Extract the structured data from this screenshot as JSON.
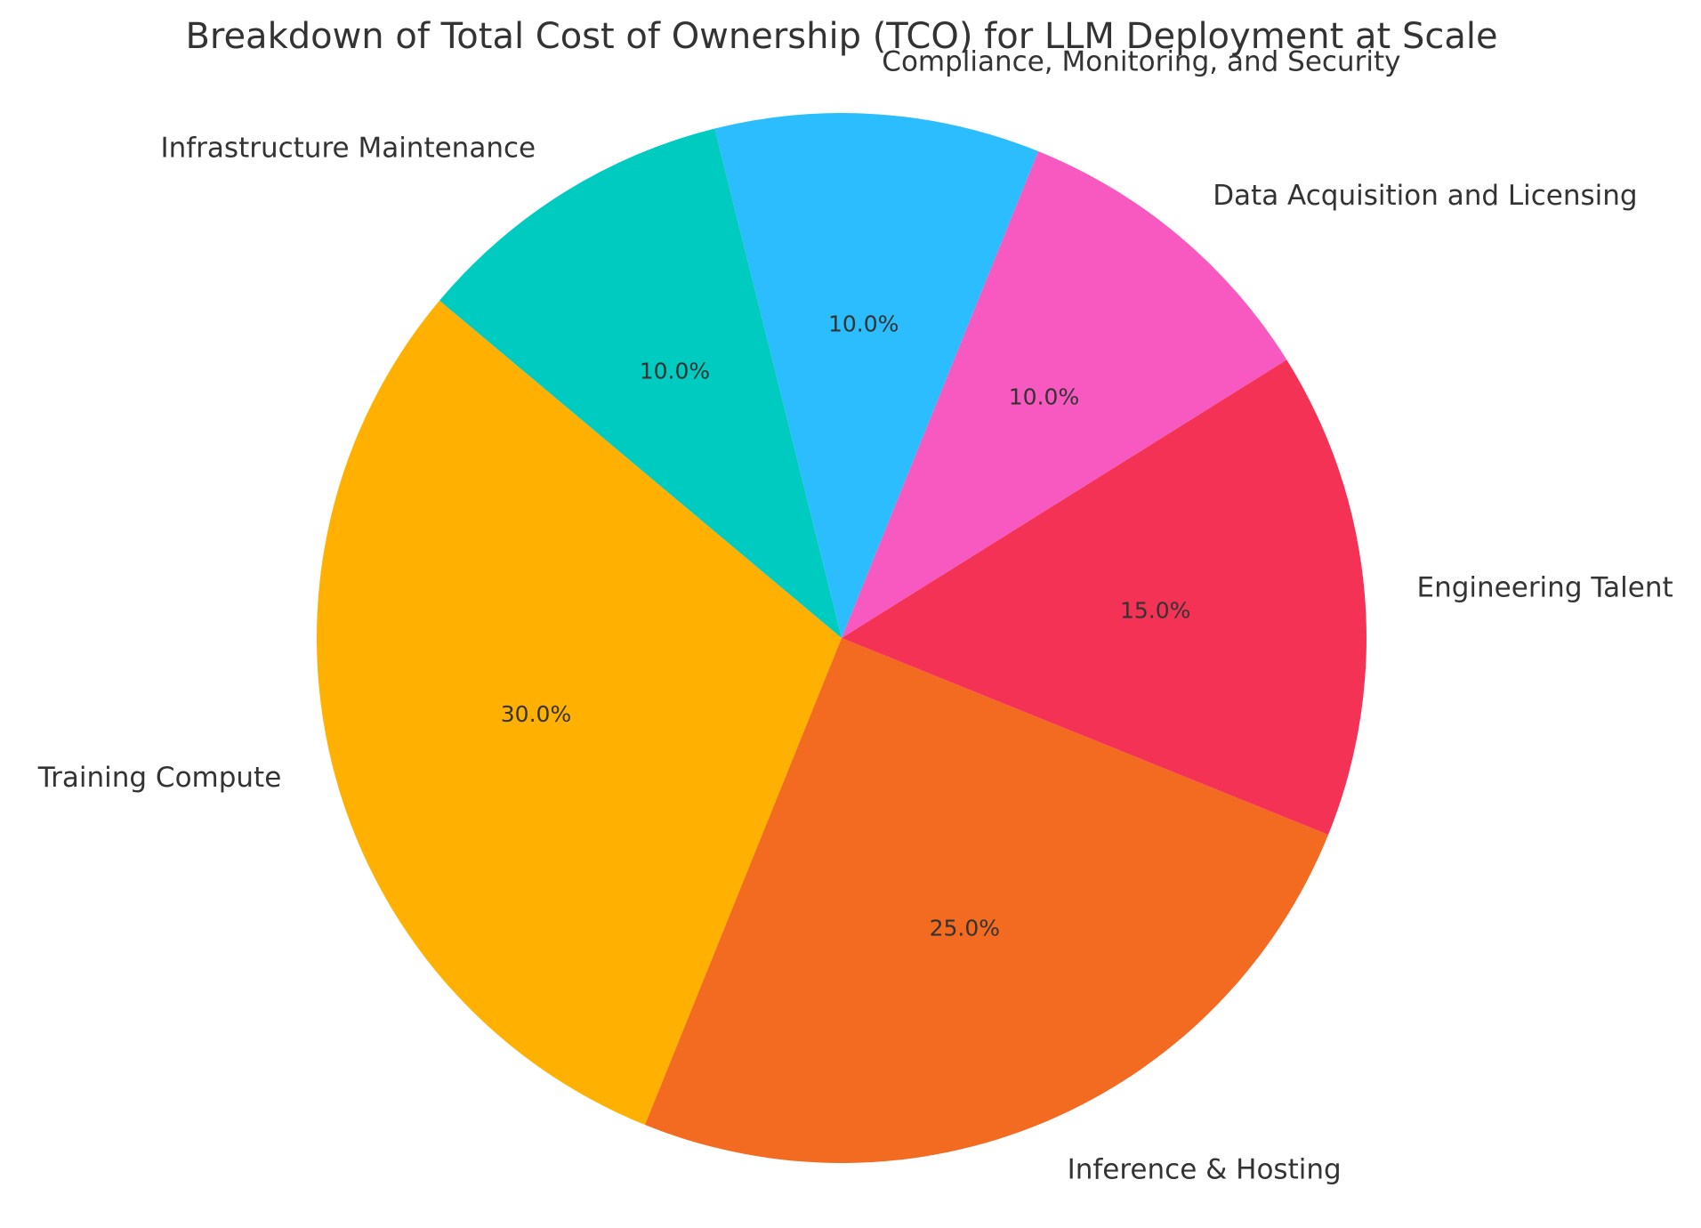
{
  "chart_data": {
    "type": "pie",
    "title": "Breakdown of Total Cost of Ownership (TCO) for LLM Deployment at Scale",
    "slices": [
      {
        "label": "Training Compute",
        "value": 30.0,
        "pct_text": "30.0%",
        "color": "#FFB000"
      },
      {
        "label": "Inference & Hosting",
        "value": 25.0,
        "pct_text": "25.0%",
        "color": "#F26B21"
      },
      {
        "label": "Engineering Talent",
        "value": 15.0,
        "pct_text": "15.0%",
        "color": "#F43256"
      },
      {
        "label": "Data Acquisition and Licensing",
        "value": 10.0,
        "pct_text": "10.0%",
        "color": "#F759C1"
      },
      {
        "label": "Compliance, Monitoring, and Security",
        "value": 10.0,
        "pct_text": "10.0%",
        "color": "#2BBDFD"
      },
      {
        "label": "Infrastructure Maintenance",
        "value": 10.0,
        "pct_text": "10.0%",
        "color": "#00CBC0"
      }
    ],
    "start_angle_deg": 140,
    "direction": "counterclockwise",
    "legend": "none"
  }
}
